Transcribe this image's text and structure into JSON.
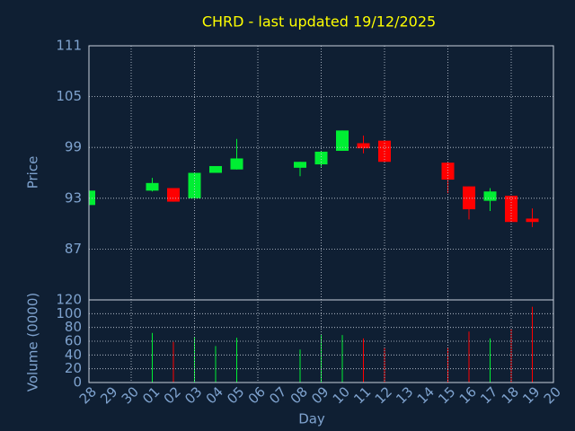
{
  "chart_data": {
    "type": "candlestick",
    "title": "CHRD - last updated 19/12/2025",
    "ylabel": "Price",
    "xlabel": "Day",
    "categories": [
      "28",
      "29",
      "30",
      "01",
      "02",
      "03",
      "04",
      "05",
      "06",
      "07",
      "08",
      "09",
      "10",
      "11",
      "12",
      "13",
      "14",
      "15",
      "16",
      "17",
      "18",
      "19",
      "20"
    ],
    "open": [
      92.2,
      null,
      null,
      93.9,
      94.2,
      93.0,
      96.0,
      96.4,
      null,
      null,
      96.6,
      97.0,
      98.6,
      99.5,
      99.8,
      null,
      null,
      97.2,
      94.4,
      92.7,
      93.3,
      90.6,
      null
    ],
    "high": [
      93.9,
      null,
      null,
      95.4,
      94.2,
      96.0,
      96.8,
      100.0,
      null,
      null,
      97.3,
      98.5,
      101.0,
      100.4,
      99.8,
      null,
      null,
      97.2,
      94.4,
      94.2,
      93.3,
      91.8,
      null
    ],
    "low": [
      92.2,
      null,
      null,
      93.8,
      92.6,
      93.0,
      96.0,
      96.4,
      null,
      null,
      95.6,
      96.7,
      98.6,
      98.3,
      97.3,
      null,
      null,
      93.6,
      90.5,
      91.5,
      90.2,
      89.6,
      null
    ],
    "close": [
      93.9,
      null,
      null,
      94.8,
      92.6,
      96.0,
      96.8,
      97.7,
      null,
      null,
      97.3,
      98.5,
      101.0,
      98.9,
      97.3,
      null,
      null,
      95.2,
      91.7,
      93.8,
      90.2,
      90.2,
      null
    ],
    "colors": {
      "up": "#00ee33",
      "down": "#ff0000"
    },
    "ylim": [
      81,
      111
    ],
    "yticks": [
      87,
      93,
      99,
      105,
      111
    ],
    "grid": true,
    "volume": {
      "ylabel": "Volume (0000)",
      "ylim": [
        0,
        120
      ],
      "yticks": [
        0,
        20,
        40,
        60,
        80,
        100,
        120
      ],
      "values": [
        null,
        null,
        null,
        72,
        59,
        66,
        53,
        65,
        null,
        null,
        48,
        69,
        69,
        64,
        51,
        null,
        null,
        51,
        74,
        64,
        78,
        110,
        null
      ]
    }
  }
}
